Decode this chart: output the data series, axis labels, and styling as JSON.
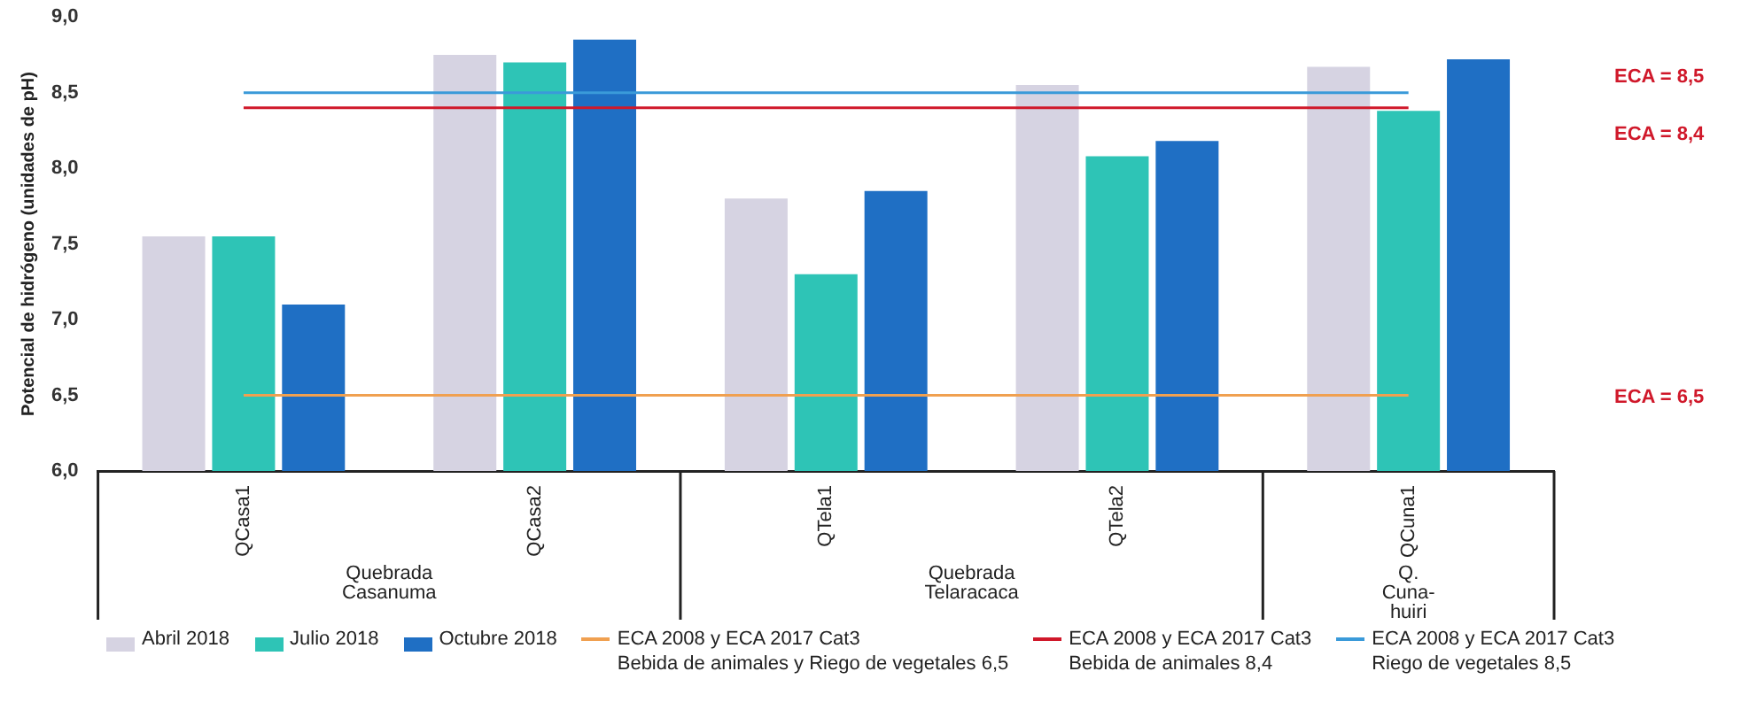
{
  "chart_data": {
    "type": "bar",
    "ylabel": "Potencial de hidrógeno (unidades de pH)",
    "categories": [
      "QCasa1",
      "QCasa2",
      "QTela1",
      "QTela2",
      "QCuna1"
    ],
    "series": [
      {
        "name": "Abril 2018",
        "color": "#d6d3e2",
        "values": [
          7.55,
          8.75,
          7.8,
          8.55,
          8.67
        ]
      },
      {
        "name": "Julio 2018",
        "color": "#2ec4b6",
        "values": [
          7.55,
          8.7,
          7.3,
          8.08,
          8.38
        ]
      },
      {
        "name": "Octubre 2018",
        "color": "#1f6fc4",
        "values": [
          7.1,
          8.85,
          7.85,
          8.18,
          8.72
        ]
      },
      {
        "type": "line",
        "name": "ECA 2008 y ECA 2017 Cat3\nBebida de animales y Riego de vegetales 6,5",
        "color": "#f0a050",
        "values": [
          6.5,
          6.5,
          6.5,
          6.5,
          6.5
        ]
      },
      {
        "type": "line",
        "name": "ECA 2008 y ECA 2017 Cat3\nBebida de animales 8,4",
        "color": "#d0182a",
        "values": [
          8.4,
          8.4,
          8.4,
          8.4,
          8.4
        ]
      },
      {
        "type": "line",
        "name": "ECA 2008 y ECA 2017 Cat3\nRiego de vegetales 8,5",
        "color": "#3a9ad9",
        "values": [
          8.5,
          8.5,
          8.5,
          8.5,
          8.5
        ]
      }
    ],
    "ylim": [
      6,
      9
    ],
    "yticks": [
      {
        "value": 6,
        "label": "6,0"
      },
      {
        "value": 6.5,
        "label": "6,5"
      },
      {
        "value": 7,
        "label": "7,0"
      },
      {
        "value": 7.5,
        "label": "7,5"
      },
      {
        "value": 8,
        "label": "8,0"
      },
      {
        "value": 8.5,
        "label": "8,5"
      },
      {
        "value": 9,
        "label": "9,0"
      }
    ],
    "annotations": [
      "Quebrada Casanuma",
      "Quebrada Telaracaca",
      "Q. Cuna-huiri",
      "ECA = 6,5",
      "ECA = 8,4",
      "ECA = 8,5"
    ],
    "grid": false,
    "legend": "bottom",
    "marker": "none",
    "line_style": "solid"
  }
}
